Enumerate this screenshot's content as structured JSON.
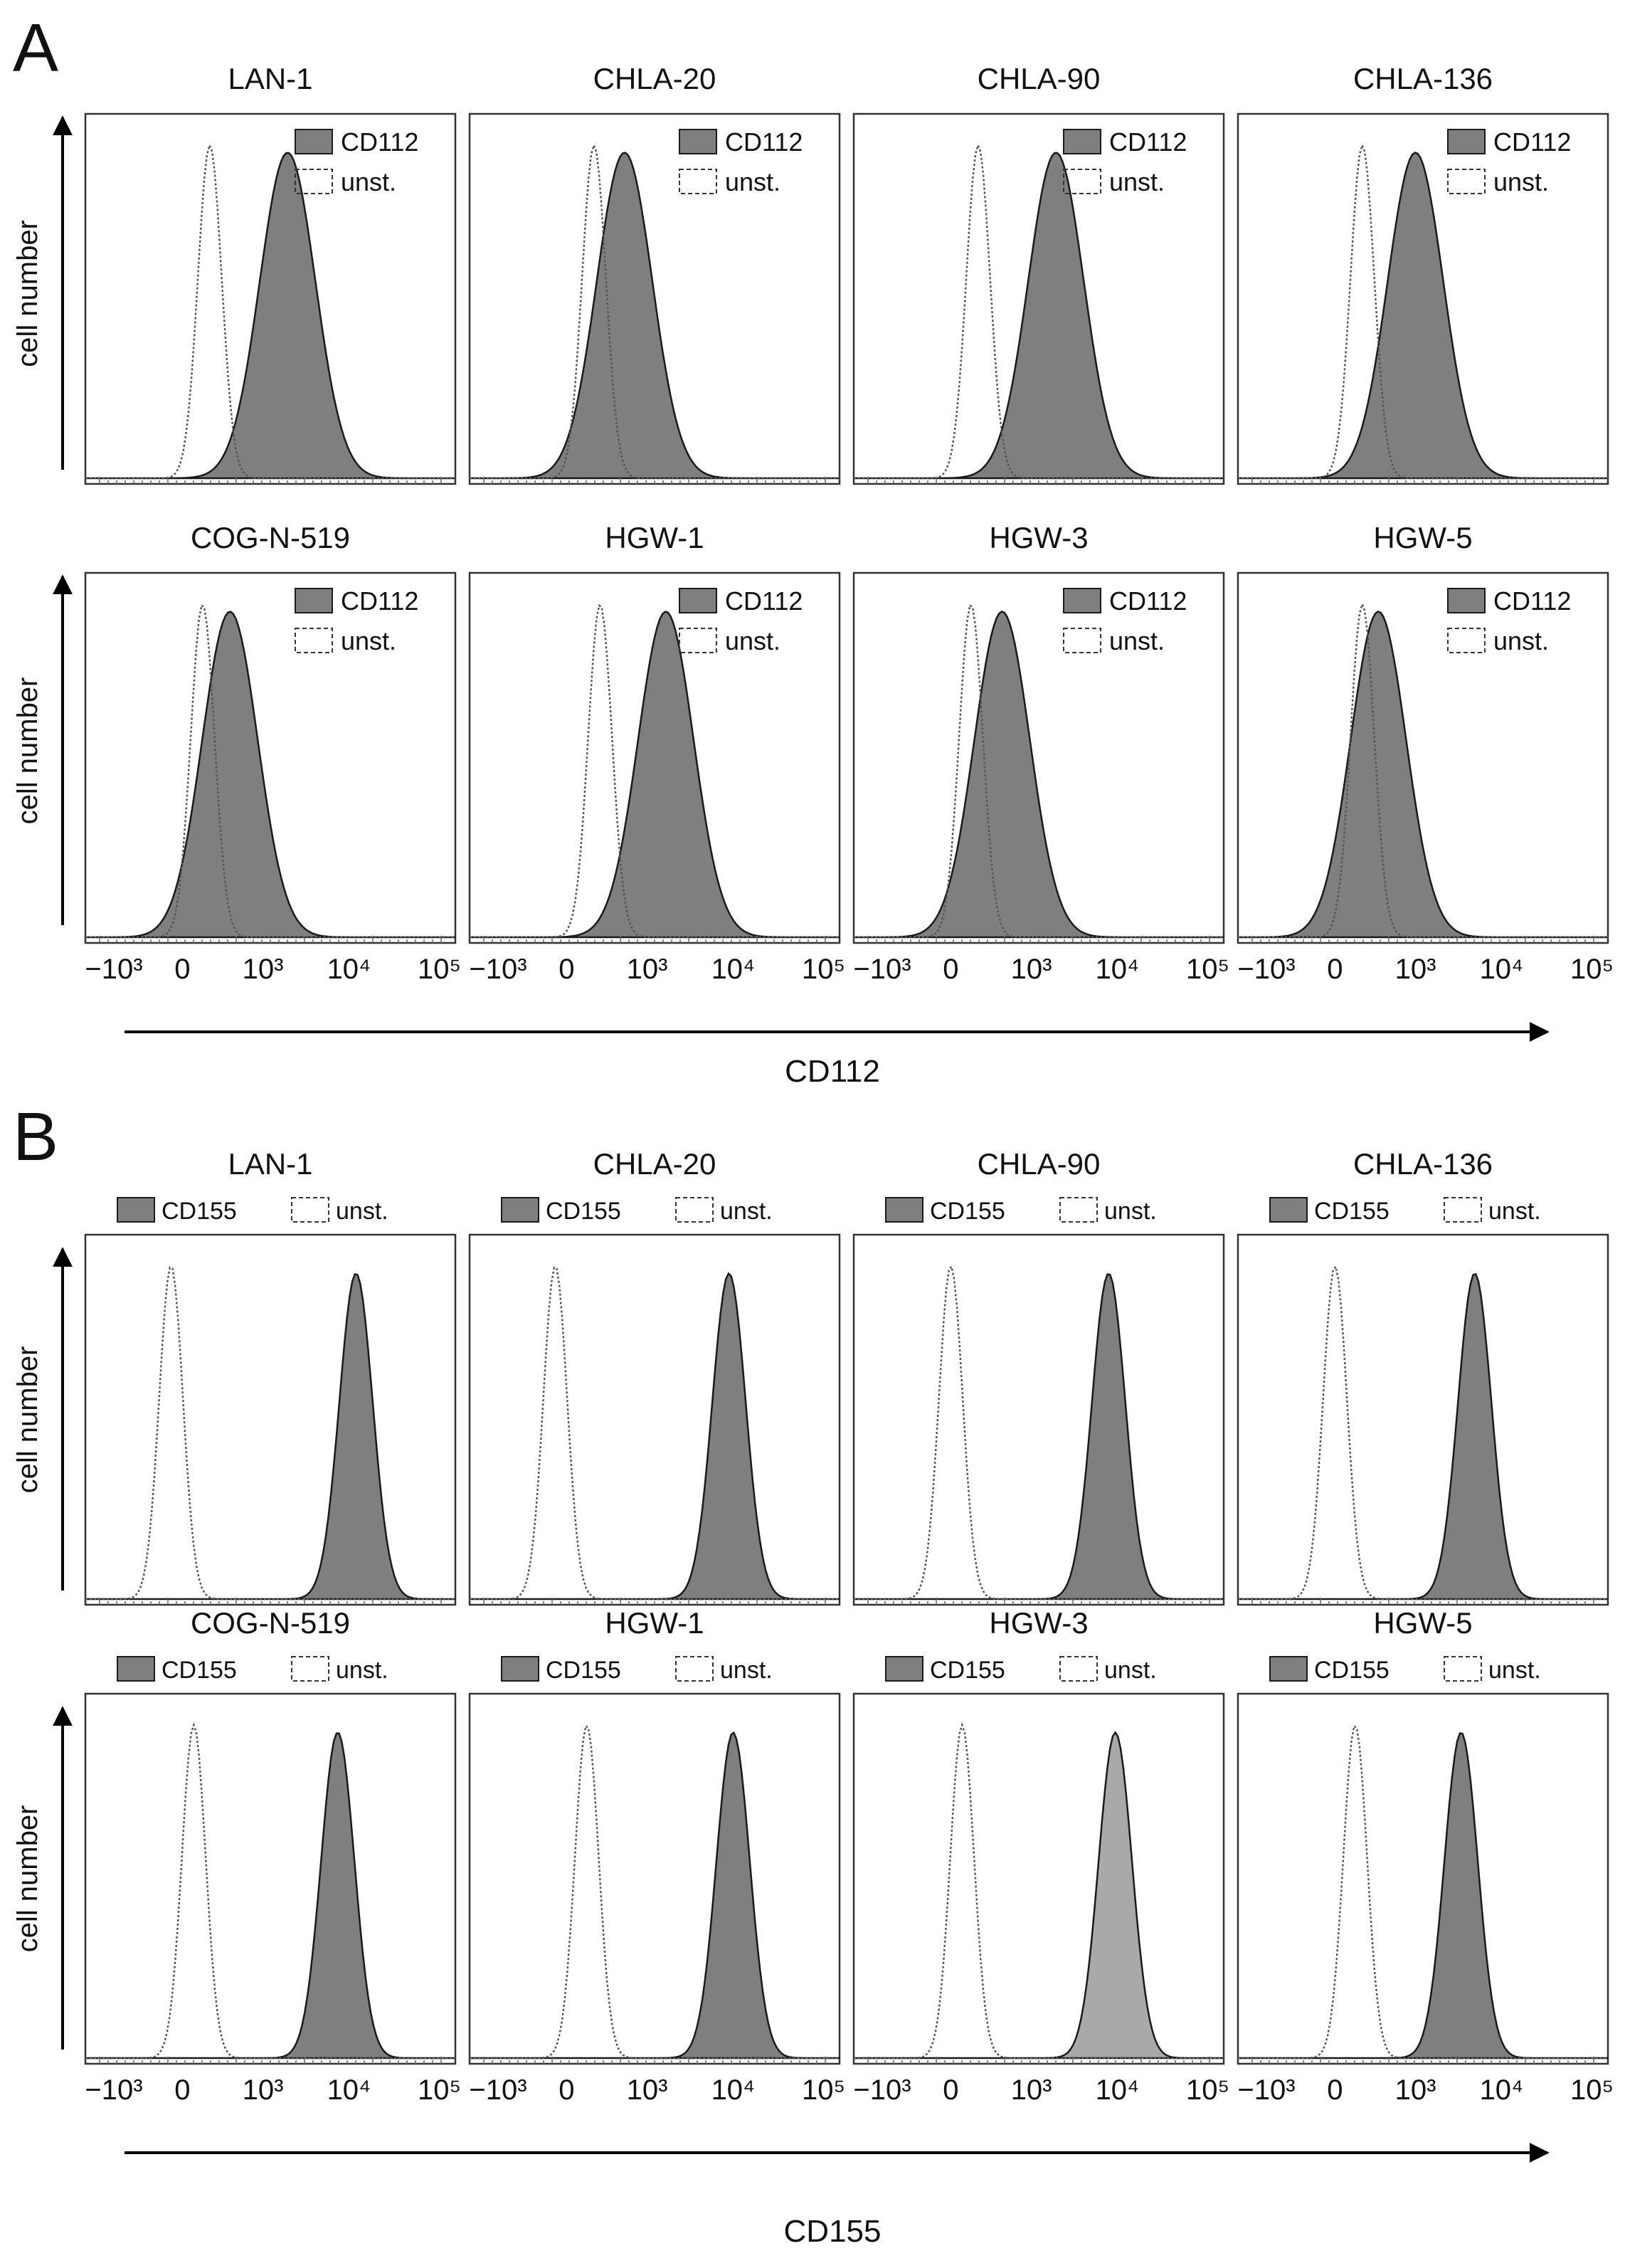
{
  "figure": {
    "colors": {
      "ink": "#1a1a1a",
      "fill_dark": "#7f7f7f",
      "fill_light": "#a9a9a9",
      "unstained": "#555555"
    },
    "panels": [
      {
        "letter": "A",
        "ylabel": "cell number",
        "xlabel": "CD112",
        "legend_layout": "inside-top-right",
        "stain": "CD112",
        "unstained": "unst.",
        "ticks": [
          "−10³",
          "0",
          "10³",
          "10⁴",
          "10⁵"
        ]
      },
      {
        "letter": "B",
        "ylabel": "cell number",
        "xlabel": "CD155",
        "legend_layout": "above",
        "stain": "CD155",
        "unstained": "unst.",
        "ticks": [
          "−10³",
          "0",
          "10³",
          "10⁴",
          "10⁵"
        ]
      }
    ]
  },
  "chart_data": [
    {
      "type": "area",
      "marker": "CD112",
      "x_scale": "biexponential",
      "xlim": [
        -1000,
        100000
      ],
      "legend": [
        "CD112",
        "unst."
      ],
      "rows": [
        [
          {
            "title": "LAN-1",
            "unst_mode": 150,
            "stain_mode": 2000
          },
          {
            "title": "CHLA-20",
            "unst_mode": 150,
            "stain_mode": 500
          },
          {
            "title": "CHLA-90",
            "unst_mode": 150,
            "stain_mode": 2000
          },
          {
            "title": "CHLA-136",
            "unst_mode": 150,
            "stain_mode": 1000
          }
        ],
        [
          {
            "title": "COG-N-519",
            "unst_mode": 100,
            "stain_mode": 350
          },
          {
            "title": "HGW-1",
            "unst_mode": 200,
            "stain_mode": 1700
          },
          {
            "title": "HGW-3",
            "unst_mode": 100,
            "stain_mode": 400
          },
          {
            "title": "HGW-5",
            "unst_mode": 150,
            "stain_mode": 300
          }
        ]
      ]
    },
    {
      "type": "area",
      "marker": "CD155",
      "x_scale": "biexponential",
      "xlim": [
        -1000,
        100000
      ],
      "legend": [
        "CD155",
        "unst."
      ],
      "rows": [
        [
          {
            "title": "LAN-1",
            "unst_mode": -50,
            "stain_mode": 12000
          },
          {
            "title": "CHLA-20",
            "unst_mode": -50,
            "stain_mode": 9000
          },
          {
            "title": "CHLA-90",
            "unst_mode": 0,
            "stain_mode": 8000
          },
          {
            "title": "CHLA-136",
            "unst_mode": 0,
            "stain_mode": 5000
          }
        ],
        [
          {
            "title": "COG-N-519",
            "unst_mode": 50,
            "stain_mode": 7500
          },
          {
            "title": "HGW-1",
            "unst_mode": 100,
            "stain_mode": 10000
          },
          {
            "title": "HGW-3",
            "unst_mode": 50,
            "stain_mode": 9500
          },
          {
            "title": "HGW-5",
            "unst_mode": 100,
            "stain_mode": 3500
          }
        ]
      ]
    }
  ]
}
